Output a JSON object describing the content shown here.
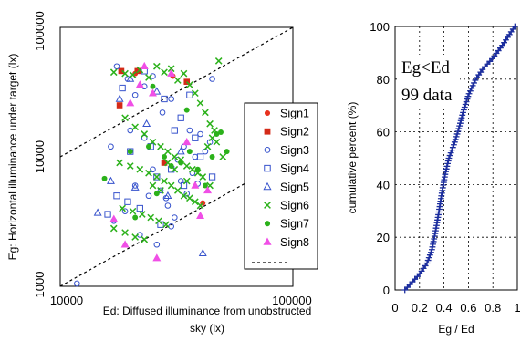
{
  "chart_data": [
    {
      "type": "scatter",
      "xscale": "log",
      "yscale": "log",
      "xlim": [
        10000,
        100000
      ],
      "ylim": [
        1000,
        100000
      ],
      "xticks": [
        "10000",
        "100000"
      ],
      "yticks": [
        "1000",
        "10000",
        "100000"
      ],
      "xlabel_lines": [
        "Ed: Diffused illuminance from unobstructed",
        "sky (lx)"
      ],
      "ylabel": "Eg: Horizontal illuminance under target (lx)",
      "grid": false,
      "legend_position": "right",
      "reference_lines": [
        {
          "x": [
            10000,
            100000
          ],
          "y": [
            10000,
            100000
          ]
        },
        {
          "x": [
            10000,
            100000
          ],
          "y": [
            1000,
            10000
          ]
        }
      ],
      "series": [
        {
          "name": "Sign1",
          "marker": "dot",
          "color": "#e8321e",
          "points": [
            [
              21000,
              44000
            ],
            [
              30500,
              42000
            ],
            [
              41000,
              4400
            ]
          ]
        },
        {
          "name": "Sign2",
          "marker": "square",
          "color": "#d42a18",
          "points": [
            [
              18300,
              46000
            ],
            [
              21500,
              46000
            ],
            [
              28000,
              9000
            ],
            [
              35000,
              38000
            ],
            [
              18000,
              25000
            ]
          ]
        },
        {
          "name": "Sign3",
          "marker": "circle",
          "color": "#3652cc",
          "points": [
            [
              17500,
              50000
            ],
            [
              19500,
              40000
            ],
            [
              21000,
              30000
            ],
            [
              23000,
              35000
            ],
            [
              25000,
              42000
            ],
            [
              27500,
              22000
            ],
            [
              30000,
              28000
            ],
            [
              32000,
              9500
            ],
            [
              34000,
              12000
            ],
            [
              36000,
              16000
            ],
            [
              38000,
              10000
            ],
            [
              40000,
              15000
            ],
            [
              42000,
              11000
            ],
            [
              21000,
              6000
            ],
            [
              24000,
              5000
            ],
            [
              27000,
              5500
            ],
            [
              29000,
              4200
            ],
            [
              31000,
              3400
            ],
            [
              33000,
              6500
            ],
            [
              17000,
              3200
            ],
            [
              19000,
              3800
            ],
            [
              22000,
              2500
            ],
            [
              26000,
              2100
            ],
            [
              28500,
              4800
            ],
            [
              35000,
              5200
            ],
            [
              37000,
              7500
            ],
            [
              39000,
              6200
            ],
            [
              16500,
              12000
            ],
            [
              30000,
              2900
            ],
            [
              11800,
              1050
            ],
            [
              23000,
              14000
            ],
            [
              20000,
              16000
            ],
            [
              44000,
              13000
            ],
            [
              25000,
              8000
            ],
            [
              45000,
              40000
            ]
          ]
        },
        {
          "name": "Sign4",
          "marker": "open-square",
          "color": "#3652cc",
          "points": [
            [
              18500,
              34000
            ],
            [
              23000,
              46000
            ],
            [
              28000,
              28000
            ],
            [
              33000,
              20000
            ],
            [
              38000,
              14000
            ],
            [
              20000,
              11000
            ],
            [
              26000,
              7000
            ],
            [
              30000,
              8000
            ],
            [
              17500,
              5000
            ],
            [
              22000,
              4000
            ],
            [
              34000,
              6000
            ],
            [
              40000,
              10000
            ],
            [
              27000,
              3000
            ],
            [
              16000,
              3600
            ],
            [
              45000,
              7000
            ],
            [
              31000,
              16000
            ],
            [
              19500,
              4500
            ],
            [
              24500,
              12000
            ],
            [
              36000,
              30000
            ]
          ]
        },
        {
          "name": "Sign5",
          "marker": "triangle",
          "color": "#3652cc",
          "points": [
            [
              18000,
              28000
            ],
            [
              21000,
              5800
            ],
            [
              14500,
              3700
            ],
            [
              26000,
              32000
            ],
            [
              20000,
              40000
            ],
            [
              41000,
              1800
            ],
            [
              33000,
              11000
            ],
            [
              29000,
              5000
            ],
            [
              23500,
              18000
            ],
            [
              16500,
              6500
            ]
          ]
        },
        {
          "name": "Sign6",
          "marker": "x",
          "color": "#2bb11a",
          "points": [
            [
              17000,
              45000
            ],
            [
              19000,
              44000
            ],
            [
              20500,
              43000
            ],
            [
              22000,
              47000
            ],
            [
              24000,
              41000
            ],
            [
              26000,
              50000
            ],
            [
              28000,
              45000
            ],
            [
              30000,
              48000
            ],
            [
              32000,
              39000
            ],
            [
              34000,
              44000
            ],
            [
              36000,
              36000
            ],
            [
              38000,
              31000
            ],
            [
              40000,
              26000
            ],
            [
              42000,
              22000
            ],
            [
              44000,
              18000
            ],
            [
              46000,
              16000
            ],
            [
              48000,
              55000
            ],
            [
              19000,
              20000
            ],
            [
              21000,
              17000
            ],
            [
              23000,
              15000
            ],
            [
              25000,
              13000
            ],
            [
              27000,
              12000
            ],
            [
              29000,
              11000
            ],
            [
              31000,
              10000
            ],
            [
              33000,
              9500
            ],
            [
              35000,
              8500
            ],
            [
              37000,
              8000
            ],
            [
              39000,
              7500
            ],
            [
              41000,
              7000
            ],
            [
              43000,
              12000
            ],
            [
              45000,
              14000
            ],
            [
              47000,
              13000
            ],
            [
              18000,
              9000
            ],
            [
              20000,
              8500
            ],
            [
              22000,
              8000
            ],
            [
              24000,
              7500
            ],
            [
              26000,
              7000
            ],
            [
              28000,
              6500
            ],
            [
              30000,
              6000
            ],
            [
              32000,
              5500
            ],
            [
              34000,
              5000
            ],
            [
              36000,
              4800
            ],
            [
              38000,
              4500
            ],
            [
              40000,
              4200
            ],
            [
              18500,
              4000
            ],
            [
              20500,
              3800
            ],
            [
              22500,
              3600
            ],
            [
              24500,
              3400
            ],
            [
              26500,
              3200
            ],
            [
              28500,
              3000
            ],
            [
              17000,
              2800
            ],
            [
              19000,
              2600
            ],
            [
              21000,
              2400
            ],
            [
              23000,
              2300
            ],
            [
              25000,
              6000
            ],
            [
              27000,
              5500
            ],
            [
              29000,
              9000
            ],
            [
              31000,
              8000
            ],
            [
              35000,
              6500
            ],
            [
              50000,
              10000
            ],
            [
              44000,
              6000
            ]
          ]
        },
        {
          "name": "Sign7",
          "marker": "dot",
          "color": "#2bb11a",
          "points": [
            [
              15500,
              6800
            ],
            [
              20000,
              11000
            ],
            [
              24000,
              12000
            ],
            [
              28000,
              10000
            ],
            [
              33000,
              9000
            ],
            [
              36000,
              11000
            ],
            [
              39000,
              8000
            ],
            [
              42000,
              6000
            ],
            [
              45000,
              10000
            ],
            [
              47000,
              15000
            ],
            [
              49000,
              15500
            ],
            [
              52000,
              11000
            ],
            [
              21000,
              3400
            ],
            [
              26000,
              5200
            ],
            [
              30000,
              8500
            ],
            [
              25000,
              35000
            ],
            [
              35000,
              23000
            ]
          ]
        },
        {
          "name": "Sign8",
          "marker": "triangle",
          "color": "#f04fe6",
          "points": [
            [
              22000,
              36000
            ],
            [
              25000,
              31000
            ],
            [
              23000,
              50000
            ],
            [
              30000,
              44000
            ],
            [
              17000,
              3300
            ],
            [
              19000,
              2100
            ],
            [
              26000,
              1650
            ],
            [
              38000,
              6000
            ],
            [
              40000,
              3500
            ],
            [
              43000,
              5500
            ],
            [
              20000,
              26000
            ],
            [
              35000,
              13000
            ]
          ]
        }
      ]
    },
    {
      "type": "line",
      "xlim": [
        0,
        1
      ],
      "ylim": [
        0,
        100
      ],
      "xticks": [
        "0",
        "0.2",
        "0.4",
        "0.6",
        "0.8",
        "1"
      ],
      "yticks": [
        "0",
        "20",
        "40",
        "60",
        "80",
        "100"
      ],
      "xlabel": "Eg / Ed",
      "ylabel": "cumulative percent (%)",
      "grid": true,
      "annotation_lines": [
        "Eg<Ed",
        "99 data"
      ],
      "color": "#1c2e9e",
      "marker": "plus",
      "cdf_knots": [
        [
          0.08,
          0
        ],
        [
          0.12,
          2
        ],
        [
          0.2,
          6
        ],
        [
          0.26,
          10
        ],
        [
          0.3,
          15
        ],
        [
          0.33,
          22
        ],
        [
          0.36,
          30
        ],
        [
          0.38,
          36
        ],
        [
          0.41,
          44
        ],
        [
          0.44,
          50
        ],
        [
          0.48,
          55
        ],
        [
          0.52,
          61
        ],
        [
          0.56,
          68
        ],
        [
          0.6,
          74
        ],
        [
          0.66,
          80
        ],
        [
          0.72,
          84
        ],
        [
          0.8,
          88
        ],
        [
          0.88,
          93
        ],
        [
          0.95,
          98
        ],
        [
          0.98,
          100
        ]
      ],
      "n_points": 99
    }
  ]
}
